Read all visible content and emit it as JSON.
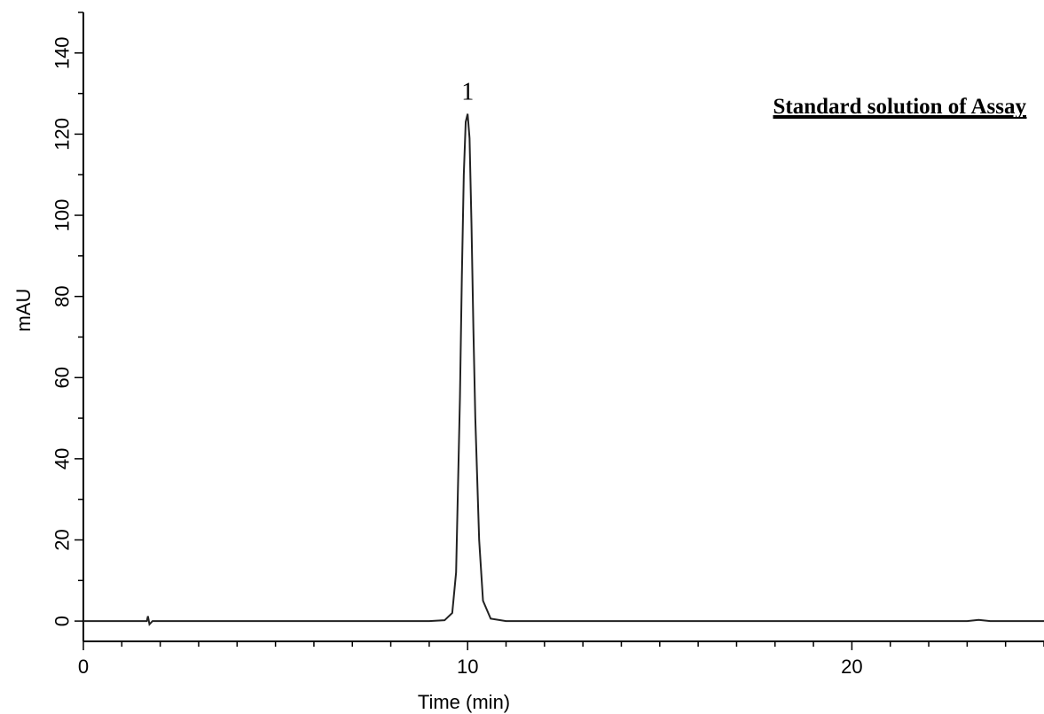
{
  "chart_data": {
    "type": "line",
    "title": "Standard solution of Assay",
    "xlabel": "Time (min)",
    "ylabel": "mAU",
    "xlim": [
      0,
      25
    ],
    "ylim": [
      -5,
      150
    ],
    "x_ticks": [
      0,
      10,
      20
    ],
    "x_tick_labels": [
      "0",
      "10",
      "20"
    ],
    "y_ticks": [
      0,
      20,
      40,
      60,
      80,
      100,
      120,
      140
    ],
    "y_tick_labels": [
      "0",
      "20",
      "40",
      "60",
      "80",
      "100",
      "120",
      "140"
    ],
    "grid": false,
    "series": [
      {
        "x": [
          0,
          1.5,
          1.65,
          1.68,
          1.72,
          1.8,
          5,
          9.0,
          9.4,
          9.6,
          9.7,
          9.8,
          9.85,
          9.9,
          9.95,
          10.0,
          10.05,
          10.1,
          10.15,
          10.2,
          10.3,
          10.4,
          10.6,
          11.0,
          15,
          20,
          23,
          23.3,
          23.6,
          25
        ],
        "y": [
          0,
          0,
          0,
          1.2,
          -0.8,
          0,
          0,
          0,
          0.2,
          2,
          12,
          55,
          85,
          110,
          123,
          125,
          119,
          98,
          72,
          50,
          20,
          5,
          0.6,
          0,
          0,
          0,
          0,
          0.3,
          0,
          0
        ]
      }
    ],
    "annotations": [
      {
        "text": "1",
        "x": 10.0,
        "y": 125
      }
    ]
  }
}
